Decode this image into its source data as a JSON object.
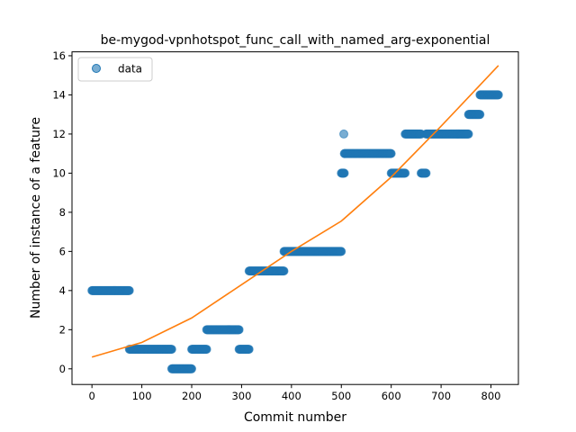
{
  "chart_data": {
    "type": "scatter",
    "title": "be-mygod-vpnhotspot_func_call_with_named_arg-exponential",
    "xlabel": "Commit number",
    "ylabel": "Number of instance of a feature",
    "xlim": [
      -40,
      855
    ],
    "ylim": [
      -0.8,
      16.2
    ],
    "xticks": [
      0,
      100,
      200,
      300,
      400,
      500,
      600,
      700,
      800
    ],
    "yticks": [
      0,
      2,
      4,
      6,
      8,
      10,
      12,
      14,
      16
    ],
    "grid": false,
    "legend": {
      "placement": "top-left",
      "entries": [
        "data"
      ]
    },
    "colors": {
      "data": "#1f77b4",
      "fit": "#ff7f0e"
    },
    "series": [
      {
        "name": "data",
        "kind": "scatter",
        "segments": [
          {
            "x_start": 0,
            "x_end": 75,
            "y": 4
          },
          {
            "x_start": 75,
            "x_end": 160,
            "y": 1
          },
          {
            "x_start": 160,
            "x_end": 200,
            "y": 0
          },
          {
            "x_start": 200,
            "x_end": 230,
            "y": 1
          },
          {
            "x_start": 230,
            "x_end": 295,
            "y": 2
          },
          {
            "x_start": 295,
            "x_end": 315,
            "y": 1
          },
          {
            "x_start": 315,
            "x_end": 385,
            "y": 5
          },
          {
            "x_start": 385,
            "x_end": 500,
            "y": 6
          },
          {
            "x_start": 500,
            "x_end": 506,
            "y": 10
          },
          {
            "x_start": 506,
            "x_end": 600,
            "y": 11
          },
          {
            "x_start": 600,
            "x_end": 628,
            "y": 10
          },
          {
            "x_start": 628,
            "x_end": 660,
            "y": 12
          },
          {
            "x_start": 660,
            "x_end": 670,
            "y": 10
          },
          {
            "x_start": 670,
            "x_end": 755,
            "y": 12
          },
          {
            "x_start": 755,
            "x_end": 778,
            "y": 13
          },
          {
            "x_start": 778,
            "x_end": 815,
            "y": 14
          }
        ],
        "points": [
          {
            "x": 505,
            "y": 12
          }
        ]
      },
      {
        "kind": "line",
        "x": [
          0,
          100,
          200,
          300,
          400,
          500,
          600,
          700,
          815
        ],
        "y": [
          0.6,
          1.35,
          2.6,
          4.3,
          6.0,
          7.55,
          9.8,
          12.4,
          15.5
        ]
      }
    ]
  }
}
